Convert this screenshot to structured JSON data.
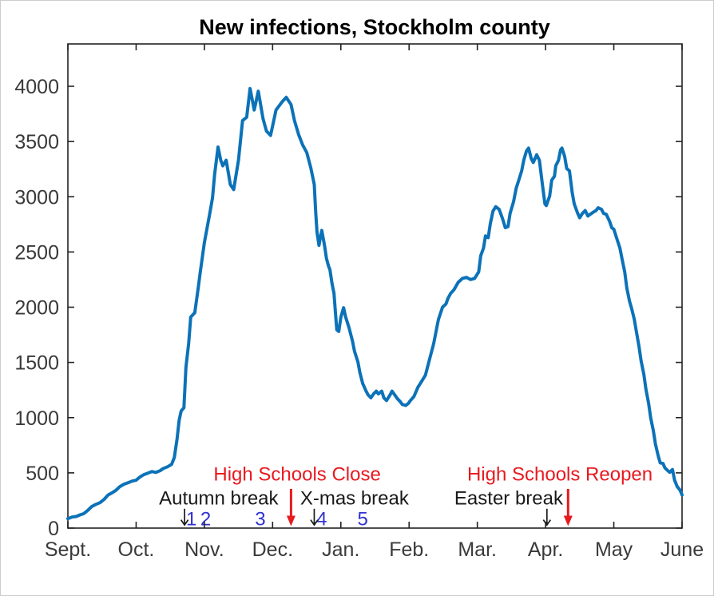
{
  "colors": {
    "line": "#0c72b8",
    "annotation_red": "#e8191f",
    "annotation_blue": "#3232d2",
    "annotation_black": "#1a1a1a",
    "tick_text": "#3a3a3a",
    "axis": "#222222",
    "title_text": "#000000",
    "background": "#ffffff",
    "border": "#cccccc"
  },
  "chart_data": {
    "type": "line",
    "title": "New infections, Stockholm county",
    "xlabel": "",
    "ylabel": "",
    "grid": false,
    "legend_position": "none",
    "x_tick_labels": [
      "Sept.",
      "Oct.",
      "Nov.",
      "Dec.",
      "Jan.",
      "Feb.",
      "Mar.",
      "Apr.",
      "May",
      "June"
    ],
    "y_ticks": [
      0,
      500,
      1000,
      1500,
      2000,
      2500,
      3000,
      3500,
      4000
    ],
    "x_domain_months": [
      0,
      9
    ],
    "ylim": [
      0,
      4380
    ],
    "series": [
      {
        "name": "new-infections",
        "color": "#0c72b8",
        "line_width": 4,
        "points": [
          [
            0.0,
            85
          ],
          [
            0.06,
            100
          ],
          [
            0.12,
            105
          ],
          [
            0.18,
            120
          ],
          [
            0.23,
            130
          ],
          [
            0.29,
            160
          ],
          [
            0.35,
            195
          ],
          [
            0.41,
            215
          ],
          [
            0.47,
            230
          ],
          [
            0.53,
            260
          ],
          [
            0.59,
            300
          ],
          [
            0.64,
            317
          ],
          [
            0.7,
            340
          ],
          [
            0.76,
            375
          ],
          [
            0.82,
            397
          ],
          [
            0.88,
            410
          ],
          [
            0.94,
            425
          ],
          [
            1.0,
            433
          ],
          [
            1.05,
            460
          ],
          [
            1.11,
            483
          ],
          [
            1.17,
            497
          ],
          [
            1.23,
            512
          ],
          [
            1.29,
            504
          ],
          [
            1.35,
            519
          ],
          [
            1.4,
            540
          ],
          [
            1.46,
            555
          ],
          [
            1.52,
            577
          ],
          [
            1.56,
            640
          ],
          [
            1.6,
            807
          ],
          [
            1.63,
            975
          ],
          [
            1.66,
            1060
          ],
          [
            1.7,
            1090
          ],
          [
            1.73,
            1455
          ],
          [
            1.77,
            1670
          ],
          [
            1.8,
            1910
          ],
          [
            1.86,
            1950
          ],
          [
            1.91,
            2175
          ],
          [
            1.94,
            2320
          ],
          [
            2.0,
            2585
          ],
          [
            2.08,
            2850
          ],
          [
            2.12,
            2990
          ],
          [
            2.15,
            3200
          ],
          [
            2.2,
            3450
          ],
          [
            2.24,
            3330
          ],
          [
            2.27,
            3280
          ],
          [
            2.32,
            3330
          ],
          [
            2.38,
            3110
          ],
          [
            2.43,
            3065
          ],
          [
            2.5,
            3330
          ],
          [
            2.56,
            3690
          ],
          [
            2.62,
            3720
          ],
          [
            2.67,
            3980
          ],
          [
            2.73,
            3785
          ],
          [
            2.79,
            3955
          ],
          [
            2.86,
            3705
          ],
          [
            2.91,
            3595
          ],
          [
            2.97,
            3555
          ],
          [
            3.05,
            3785
          ],
          [
            3.14,
            3860
          ],
          [
            3.2,
            3900
          ],
          [
            3.27,
            3835
          ],
          [
            3.32,
            3690
          ],
          [
            3.38,
            3565
          ],
          [
            3.44,
            3470
          ],
          [
            3.5,
            3400
          ],
          [
            3.56,
            3260
          ],
          [
            3.61,
            3110
          ],
          [
            3.63,
            2870
          ],
          [
            3.65,
            2680
          ],
          [
            3.68,
            2560
          ],
          [
            3.7,
            2630
          ],
          [
            3.72,
            2695
          ],
          [
            3.76,
            2560
          ],
          [
            3.79,
            2440
          ],
          [
            3.82,
            2370
          ],
          [
            3.84,
            2340
          ],
          [
            3.87,
            2215
          ],
          [
            3.9,
            2125
          ],
          [
            3.92,
            1960
          ],
          [
            3.94,
            1795
          ],
          [
            3.97,
            1780
          ],
          [
            4.0,
            1910
          ],
          [
            4.04,
            1995
          ],
          [
            4.07,
            1910
          ],
          [
            4.12,
            1815
          ],
          [
            4.17,
            1695
          ],
          [
            4.2,
            1600
          ],
          [
            4.25,
            1505
          ],
          [
            4.28,
            1405
          ],
          [
            4.32,
            1310
          ],
          [
            4.37,
            1240
          ],
          [
            4.4,
            1205
          ],
          [
            4.44,
            1180
          ],
          [
            4.48,
            1215
          ],
          [
            4.52,
            1240
          ],
          [
            4.55,
            1215
          ],
          [
            4.6,
            1240
          ],
          [
            4.63,
            1180
          ],
          [
            4.67,
            1155
          ],
          [
            4.72,
            1205
          ],
          [
            4.75,
            1240
          ],
          [
            4.79,
            1205
          ],
          [
            4.83,
            1170
          ],
          [
            4.87,
            1145
          ],
          [
            4.9,
            1120
          ],
          [
            4.95,
            1110
          ],
          [
            4.99,
            1130
          ],
          [
            5.02,
            1155
          ],
          [
            5.07,
            1190
          ],
          [
            5.13,
            1275
          ],
          [
            5.19,
            1335
          ],
          [
            5.24,
            1385
          ],
          [
            5.3,
            1530
          ],
          [
            5.36,
            1670
          ],
          [
            5.4,
            1795
          ],
          [
            5.43,
            1890
          ],
          [
            5.49,
            2000
          ],
          [
            5.54,
            2030
          ],
          [
            5.57,
            2080
          ],
          [
            5.61,
            2125
          ],
          [
            5.66,
            2160
          ],
          [
            5.72,
            2225
          ],
          [
            5.78,
            2260
          ],
          [
            5.84,
            2270
          ],
          [
            5.9,
            2250
          ],
          [
            5.96,
            2260
          ],
          [
            6.02,
            2320
          ],
          [
            6.05,
            2465
          ],
          [
            6.09,
            2535
          ],
          [
            6.12,
            2645
          ],
          [
            6.16,
            2630
          ],
          [
            6.19,
            2755
          ],
          [
            6.23,
            2870
          ],
          [
            6.27,
            2910
          ],
          [
            6.32,
            2885
          ],
          [
            6.37,
            2800
          ],
          [
            6.41,
            2720
          ],
          [
            6.45,
            2730
          ],
          [
            6.48,
            2850
          ],
          [
            6.53,
            2955
          ],
          [
            6.57,
            3080
          ],
          [
            6.6,
            3135
          ],
          [
            6.65,
            3235
          ],
          [
            6.68,
            3330
          ],
          [
            6.72,
            3415
          ],
          [
            6.75,
            3440
          ],
          [
            6.79,
            3345
          ],
          [
            6.82,
            3310
          ],
          [
            6.87,
            3380
          ],
          [
            6.91,
            3330
          ],
          [
            6.95,
            3130
          ],
          [
            6.99,
            2935
          ],
          [
            7.01,
            2920
          ],
          [
            7.06,
            3005
          ],
          [
            7.09,
            3150
          ],
          [
            7.13,
            3185
          ],
          [
            7.15,
            3280
          ],
          [
            7.19,
            3330
          ],
          [
            7.22,
            3425
          ],
          [
            7.24,
            3440
          ],
          [
            7.28,
            3365
          ],
          [
            7.31,
            3255
          ],
          [
            7.35,
            3235
          ],
          [
            7.39,
            3040
          ],
          [
            7.42,
            2935
          ],
          [
            7.47,
            2850
          ],
          [
            7.5,
            2810
          ],
          [
            7.54,
            2850
          ],
          [
            7.58,
            2875
          ],
          [
            7.62,
            2825
          ],
          [
            7.65,
            2840
          ],
          [
            7.7,
            2860
          ],
          [
            7.74,
            2875
          ],
          [
            7.77,
            2900
          ],
          [
            7.82,
            2885
          ],
          [
            7.85,
            2850
          ],
          [
            7.89,
            2840
          ],
          [
            7.94,
            2775
          ],
          [
            7.97,
            2720
          ],
          [
            8.0,
            2705
          ],
          [
            8.05,
            2610
          ],
          [
            8.09,
            2535
          ],
          [
            8.12,
            2440
          ],
          [
            8.16,
            2320
          ],
          [
            8.19,
            2175
          ],
          [
            8.23,
            2055
          ],
          [
            8.26,
            1990
          ],
          [
            8.3,
            1890
          ],
          [
            8.33,
            1780
          ],
          [
            8.37,
            1640
          ],
          [
            8.4,
            1515
          ],
          [
            8.44,
            1390
          ],
          [
            8.47,
            1260
          ],
          [
            8.51,
            1130
          ],
          [
            8.54,
            1000
          ],
          [
            8.58,
            880
          ],
          [
            8.61,
            760
          ],
          [
            8.65,
            655
          ],
          [
            8.68,
            590
          ],
          [
            8.72,
            585
          ],
          [
            8.75,
            545
          ],
          [
            8.79,
            520
          ],
          [
            8.82,
            505
          ],
          [
            8.86,
            530
          ],
          [
            8.89,
            435
          ],
          [
            8.93,
            375
          ],
          [
            8.97,
            345
          ],
          [
            9.0,
            300
          ]
        ]
      }
    ],
    "annotations": [
      {
        "text": "High Schools Close",
        "color": "red",
        "x_month": 3.36,
        "y_value": 490
      },
      {
        "text": "Autumn break",
        "color": "black",
        "x_month": 2.21,
        "y_value": 272
      },
      {
        "text": "X-mas break",
        "color": "black",
        "x_month": 4.2,
        "y_value": 272
      },
      {
        "text": "High Schools Reopen",
        "color": "red",
        "x_month": 7.21,
        "y_value": 490
      },
      {
        "text": "Easter break",
        "color": "black",
        "x_month": 6.46,
        "y_value": 272
      }
    ],
    "markers": [
      {
        "label": "1",
        "x_month": 1.81,
        "y_value": 82
      },
      {
        "label": "2",
        "x_month": 2.02,
        "y_value": 82
      },
      {
        "label": "3",
        "x_month": 2.82,
        "y_value": 82
      },
      {
        "label": "4",
        "x_month": 3.72,
        "y_value": 82
      },
      {
        "label": "5",
        "x_month": 4.32,
        "y_value": 82
      }
    ],
    "arrows": [
      {
        "color": "black",
        "style": "thin",
        "x_month": 1.71,
        "y_from": 175,
        "y_to": 28
      },
      {
        "color": "red",
        "style": "solid",
        "x_month": 3.27,
        "y_from": 355,
        "y_to": 18
      },
      {
        "color": "black",
        "style": "thin",
        "x_month": 3.61,
        "y_from": 175,
        "y_to": 28
      },
      {
        "color": "black",
        "style": "thin",
        "x_month": 7.02,
        "y_from": 175,
        "y_to": 28
      },
      {
        "color": "red",
        "style": "solid",
        "x_month": 7.33,
        "y_from": 355,
        "y_to": 18
      }
    ]
  }
}
